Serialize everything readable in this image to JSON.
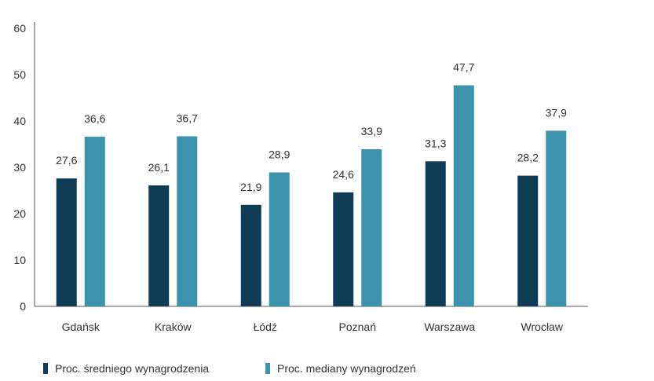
{
  "chart_data": {
    "type": "bar",
    "title": "",
    "xlabel": "",
    "ylabel": "",
    "ylim": [
      0,
      60
    ],
    "yticks": [
      0,
      10,
      20,
      30,
      40,
      50,
      60
    ],
    "grid": false,
    "legend_position": "bottom-left",
    "categories": [
      "Gdańsk",
      "Kraków",
      "Łódź",
      "Poznań",
      "Warszawa",
      "Wrocław"
    ],
    "series": [
      {
        "name": "Proc. średniego wynagrodzenia",
        "color": "#0f3d55",
        "values": [
          27.6,
          26.1,
          21.9,
          24.6,
          31.3,
          28.2
        ],
        "labels": [
          "27,6",
          "26,1",
          "21,9",
          "24,6",
          "31,3",
          "28,2"
        ]
      },
      {
        "name": "Proc. mediany wynagrodzeń",
        "color": "#3b93ad",
        "values": [
          36.6,
          36.7,
          28.9,
          33.9,
          47.7,
          37.9
        ],
        "labels": [
          "36,6",
          "36,7",
          "28,9",
          "33,9",
          "47,7",
          "37,9"
        ]
      }
    ]
  }
}
